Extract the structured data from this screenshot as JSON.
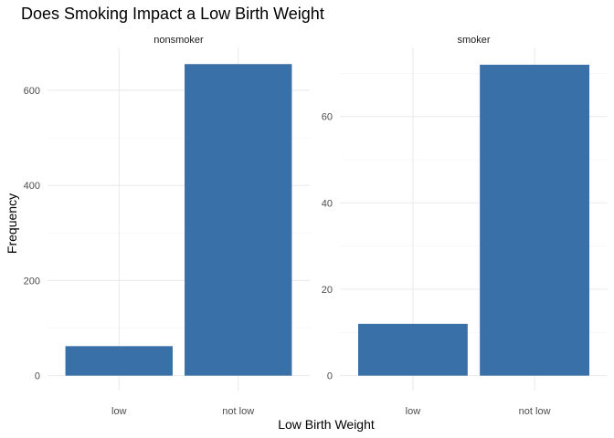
{
  "chart_data": {
    "type": "bar",
    "title": "Does Smoking Impact a Low Birth Weight",
    "xlabel": "Low Birth Weight",
    "ylabel": "Frequency",
    "bar_color": "#3A70A8",
    "grid": true,
    "facets": [
      {
        "label": "nonsmoker",
        "categories": [
          "low",
          "not low"
        ],
        "values": [
          62,
          655
        ],
        "ylim": [
          0,
          690
        ],
        "yticks": [
          0,
          200,
          400,
          600
        ]
      },
      {
        "label": "smoker",
        "categories": [
          "low",
          "not low"
        ],
        "values": [
          12,
          72
        ],
        "ylim": [
          0,
          76
        ],
        "yticks": [
          0,
          20,
          40,
          60
        ]
      }
    ]
  }
}
